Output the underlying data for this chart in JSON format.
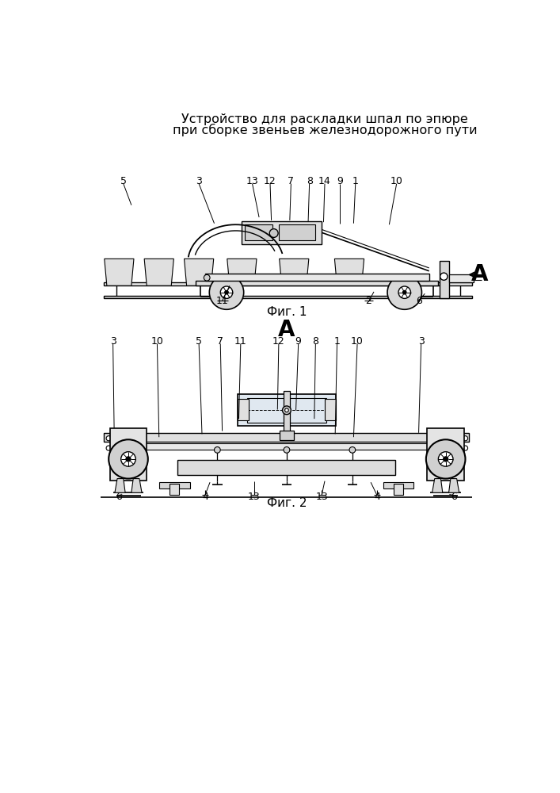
{
  "title_line1": "Устройство для раскладки шпал по эпюре",
  "title_line2": "при сборке звеньев железнодорожного пути",
  "fig1_label": "Фиг. 1",
  "fig2_label": "Фиг. 2",
  "view_label_A": "А",
  "bg_color": "#ffffff",
  "line_color": "#000000",
  "lc_gray": "#888888"
}
